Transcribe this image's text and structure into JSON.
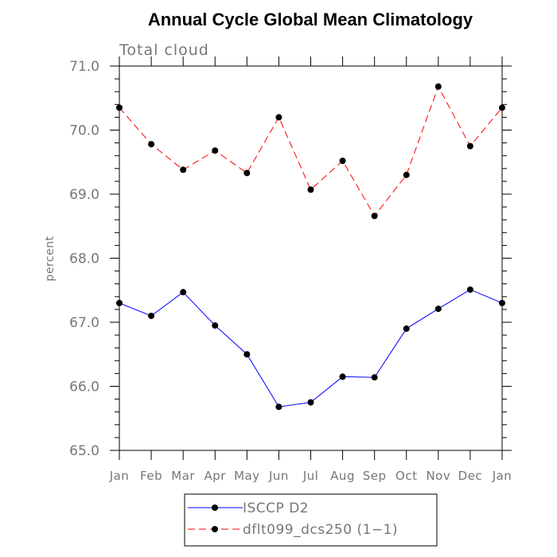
{
  "chart_data": {
    "type": "line",
    "title": "Annual Cycle Global Mean Climatology",
    "subtitle": "Total cloud",
    "xlabel": "",
    "ylabel": "percent",
    "categories": [
      "Jan",
      "Feb",
      "Mar",
      "Apr",
      "May",
      "Jun",
      "Jul",
      "Aug",
      "Sep",
      "Oct",
      "Nov",
      "Dec",
      "Jan"
    ],
    "ylim": [
      65.0,
      71.0
    ],
    "yticks": [
      "65.0",
      "66.0",
      "67.0",
      "68.0",
      "69.0",
      "70.0",
      "71.0"
    ],
    "grid": false,
    "legend_position": "bottom",
    "series": [
      {
        "name": "ISCCP D2",
        "color": "#0000ff",
        "dash": "solid",
        "marker": "filled-circle",
        "values": [
          67.3,
          67.1,
          67.47,
          66.95,
          66.5,
          65.68,
          65.75,
          66.15,
          66.14,
          66.9,
          67.21,
          67.51,
          67.3
        ]
      },
      {
        "name": "dflt099_dcs250 (1−1)",
        "color": "#ff0000",
        "dash": "dashed",
        "marker": "filled-circle",
        "values": [
          70.35,
          69.78,
          69.38,
          69.68,
          69.33,
          70.2,
          69.07,
          69.52,
          68.66,
          69.3,
          70.68,
          69.75,
          70.35
        ]
      }
    ]
  }
}
